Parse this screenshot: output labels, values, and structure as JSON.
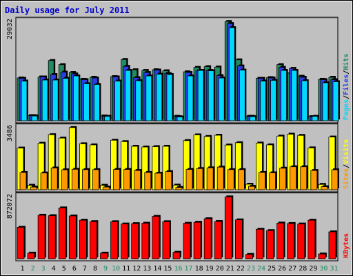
{
  "chart_data": {
    "type": "bar",
    "title": "Daily usage for July 2011",
    "categories": [
      "1",
      "2",
      "3",
      "4",
      "5",
      "6",
      "7",
      "8",
      "9",
      "10",
      "11",
      "12",
      "13",
      "14",
      "15",
      "16",
      "17",
      "18",
      "19",
      "20",
      "21",
      "22",
      "23",
      "24",
      "25",
      "26",
      "27",
      "28",
      "29",
      "30",
      "31"
    ],
    "weekend_days": [
      "2",
      "3",
      "9",
      "10",
      "16",
      "17",
      "23",
      "24",
      "30",
      "31"
    ],
    "panels": [
      {
        "id": "pages-files-hits",
        "max_label": "29032",
        "ymax": 29032,
        "legend": [
          "Pages",
          "/",
          "Files",
          "/",
          "Hits"
        ],
        "series": [
          {
            "name": "Hits",
            "values": [
              12500,
              1500,
              12800,
              17600,
              16400,
              14100,
              12100,
              12700,
              1400,
              12900,
              17900,
              14900,
              14700,
              14900,
              14600,
              1300,
              14300,
              15600,
              15800,
              15700,
              29000,
              17800,
              1300,
              12400,
              12600,
              16400,
              13900,
              13000,
              1200,
              12100,
              12700
            ]
          },
          {
            "name": "Files",
            "values": [
              12400,
              1500,
              12800,
              13500,
              14200,
              13700,
              12000,
              12500,
              1300,
              12800,
              15900,
              12600,
              14100,
              14800,
              13800,
              1200,
              14100,
              14600,
              14700,
              13200,
              28400,
              16000,
              1300,
              12400,
              12500,
              15600,
              15300,
              12700,
              1200,
              12000,
              12000
            ]
          },
          {
            "name": "Pages",
            "values": [
              11600,
              1400,
              11900,
              11900,
              12400,
              13100,
              10800,
              10600,
              1300,
              11600,
              14700,
              11700,
              13100,
              13600,
              13500,
              1100,
              13100,
              14700,
              14600,
              12500,
              27200,
              14800,
              1200,
              11600,
              11800,
              14700,
              14700,
              11700,
              1300,
              11100,
              11400
            ]
          }
        ]
      },
      {
        "id": "visits-sites",
        "max_label": "3486",
        "ymax": 3486,
        "legend": [
          "Sites",
          "/",
          "Visits"
        ],
        "series": [
          {
            "name": "Visits",
            "values": [
              2340,
              250,
              2610,
              3090,
              2900,
              3490,
              2580,
              2520,
              250,
              2780,
              2700,
              2440,
              2400,
              2420,
              2440,
              260,
              2760,
              3080,
              2990,
              3060,
              2510,
              2640,
              310,
              2620,
              2520,
              3010,
              3120,
              3050,
              2350,
              300,
              2960
            ]
          },
          {
            "name": "Sites",
            "values": [
              970,
              150,
              940,
              1220,
              1120,
              1150,
              1130,
              1130,
              150,
              1140,
              1140,
              1080,
              970,
              930,
              1020,
              130,
              1140,
              1190,
              1230,
              1270,
              1130,
              1130,
              190,
              970,
              950,
              1210,
              1290,
              1290,
              1080,
              170,
              1120
            ]
          }
        ]
      },
      {
        "id": "kbytes",
        "max_label": "872072",
        "ymax": 872072,
        "legend": [
          "KBytes"
        ],
        "series": [
          {
            "name": "KBytes",
            "values": [
              442000,
              79000,
              611000,
              605000,
              714000,
              601000,
              541000,
              521000,
              79000,
              520000,
              488000,
              493000,
              499000,
              595000,
              520000,
              91000,
              498000,
              512000,
              562000,
              523000,
              869000,
              546000,
              61000,
              414000,
              395000,
              501000,
              495000,
              488000,
              541000,
              67000,
              378000
            ]
          }
        ]
      }
    ],
    "colors": {
      "Hits": "#228b62",
      "Files": "#2a3ee8",
      "Pages": "#00d8ff",
      "Visits": "#ffff00",
      "Sites": "#ff9900",
      "KBytes": "#ff0000",
      "title": "#0000cc",
      "panel_bg": "#c0c0c0",
      "weekday_label": "#000000",
      "weekend_label": "#228b62",
      "slash": "#000000"
    }
  }
}
